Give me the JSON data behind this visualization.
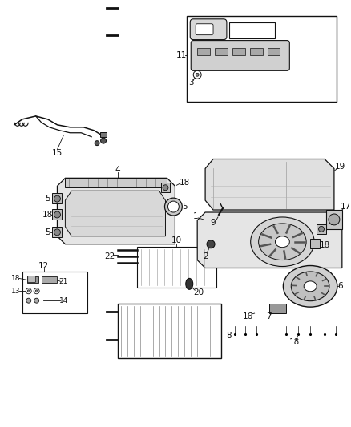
{
  "background_color": "#ffffff",
  "fig_width": 4.38,
  "fig_height": 5.33,
  "dpi": 100,
  "line_color": "#111111",
  "font_size": 7.5
}
